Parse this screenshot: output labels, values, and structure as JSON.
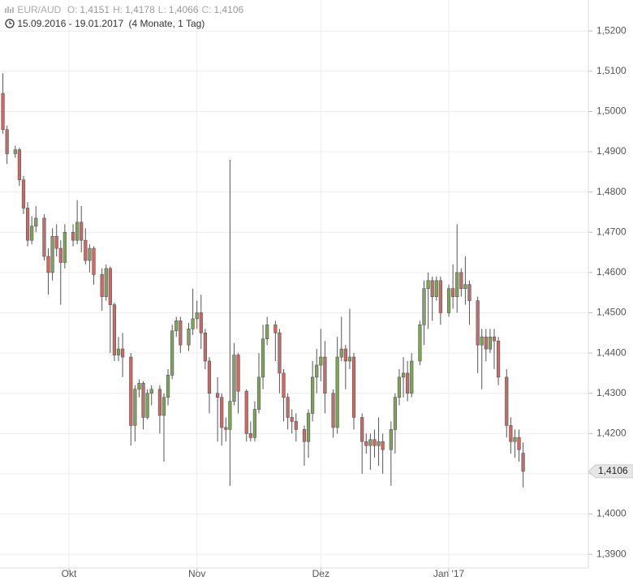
{
  "chart_data": {
    "type": "candlestick",
    "title": "EUR/AUD",
    "summary": [
      {
        "key": "O:",
        "value": 1.4151,
        "value_label": "1,4151"
      },
      {
        "key": "H:",
        "value": 1.4178,
        "value_label": "1,4178"
      },
      {
        "key": "L:",
        "value": 1.4066,
        "value_label": "1,4066"
      },
      {
        "key": "C:",
        "value": 1.4106,
        "value_label": "1,4106"
      }
    ],
    "date_range": "15.09.2016 - 19.01.2017",
    "period": "(4 Monate, 1 Tag)",
    "last_price": {
      "value": 1.4106,
      "label": "1,4106"
    },
    "up_color": "#7ea35a",
    "down_color": "#c96a66",
    "grid": true,
    "ylim": [
      1.3866,
      1.5277
    ],
    "yticks": [
      {
        "value": 1.52,
        "label": "1,5200"
      },
      {
        "value": 1.51,
        "label": "1,5100"
      },
      {
        "value": 1.5,
        "label": "1,5000"
      },
      {
        "value": 1.49,
        "label": "1,4900"
      },
      {
        "value": 1.48,
        "label": "1,4800"
      },
      {
        "value": 1.47,
        "label": "1,4700"
      },
      {
        "value": 1.46,
        "label": "1,4600"
      },
      {
        "value": 1.45,
        "label": "1,4500"
      },
      {
        "value": 1.44,
        "label": "1,4400"
      },
      {
        "value": 1.43,
        "label": "1,4300"
      },
      {
        "value": 1.42,
        "label": "1,4200"
      },
      {
        "value": 1.41,
        "label": "1,4100"
      },
      {
        "value": 1.4,
        "label": "1,4000"
      },
      {
        "value": 1.39,
        "label": "1,3900"
      }
    ],
    "xlim": [
      -0.7,
      141.8
    ],
    "xticks": [
      {
        "value": 16,
        "label": "Okt"
      },
      {
        "value": 47,
        "label": "Nov"
      },
      {
        "value": 77,
        "label": "Dez"
      },
      {
        "value": 108,
        "label": "Jan '17"
      }
    ],
    "x": [
      0,
      1,
      3,
      4,
      5,
      6,
      7,
      8,
      10,
      11,
      12,
      13,
      14,
      15,
      17,
      18,
      19,
      20,
      21,
      22,
      24,
      25,
      26,
      27,
      28,
      29,
      31,
      32,
      33,
      34,
      35,
      36,
      38,
      39,
      40,
      41,
      42,
      43,
      45,
      46,
      47,
      48,
      49,
      50,
      52,
      53,
      54,
      55,
      56,
      57,
      59,
      60,
      61,
      62,
      63,
      64,
      66,
      67,
      68,
      69,
      70,
      71,
      73,
      74,
      75,
      76,
      77,
      78,
      80,
      81,
      82,
      83,
      84,
      85,
      87,
      88,
      89,
      90,
      91,
      92,
      94,
      95,
      96,
      97,
      98,
      99,
      101,
      102,
      103,
      104,
      105,
      106,
      108,
      109,
      110,
      111,
      112,
      113,
      115,
      116,
      117,
      118,
      119,
      120,
      122,
      123,
      124,
      125,
      126
    ],
    "open": [
      1.5045,
      1.4955,
      1.4895,
      1.4905,
      1.483,
      1.476,
      1.468,
      1.4715,
      1.4735,
      1.464,
      1.46,
      1.469,
      1.466,
      1.4625,
      1.47,
      1.468,
      1.4725,
      1.468,
      1.463,
      1.466,
      1.4595,
      1.454,
      1.461,
      1.452,
      1.4395,
      1.441,
      1.439,
      1.422,
      1.431,
      1.4325,
      1.424,
      1.43,
      1.431,
      1.4245,
      1.429,
      1.4345,
      1.4455,
      1.448,
      1.442,
      1.446,
      1.4485,
      1.45,
      1.445,
      1.438,
      1.43,
      1.429,
      1.4215,
      1.421,
      1.428,
      1.4395,
      1.4305,
      1.42,
      1.419,
      1.426,
      1.434,
      1.4435,
      1.447,
      1.445,
      1.435,
      1.429,
      1.424,
      1.423,
      1.421,
      1.418,
      1.425,
      1.434,
      1.437,
      1.439,
      1.43,
      1.4215,
      1.439,
      1.441,
      1.438,
      1.439,
      1.424,
      1.418,
      1.417,
      1.4185,
      1.417,
      1.418,
      1.416,
      1.421,
      1.429,
      1.434,
      1.435,
      1.43,
      1.438,
      1.447,
      1.456,
      1.458,
      1.454,
      1.458,
      1.45,
      1.456,
      1.454,
      1.46,
      1.456,
      1.457,
      1.453,
      1.442,
      1.444,
      1.441,
      1.444,
      1.443,
      1.434,
      1.422,
      1.418,
      1.419,
      1.4151
    ],
    "high": [
      1.5095,
      1.4965,
      1.4915,
      1.491,
      1.484,
      1.4775,
      1.474,
      1.4765,
      1.4745,
      1.466,
      1.471,
      1.472,
      1.468,
      1.472,
      1.472,
      1.478,
      1.4765,
      1.471,
      1.467,
      1.4665,
      1.461,
      1.462,
      1.4615,
      1.4525,
      1.444,
      1.445,
      1.44,
      1.432,
      1.4335,
      1.433,
      1.431,
      1.432,
      1.432,
      1.43,
      1.436,
      1.447,
      1.449,
      1.449,
      1.4475,
      1.456,
      1.453,
      1.4545,
      1.446,
      1.439,
      1.434,
      1.43,
      1.424,
      1.488,
      1.4425,
      1.44,
      1.431,
      1.423,
      1.428,
      1.44,
      1.447,
      1.449,
      1.448,
      1.446,
      1.436,
      1.43,
      1.426,
      1.425,
      1.422,
      1.426,
      1.438,
      1.441,
      1.446,
      1.443,
      1.431,
      1.444,
      1.449,
      1.442,
      1.451,
      1.44,
      1.425,
      1.42,
      1.42,
      1.421,
      1.424,
      1.42,
      1.423,
      1.43,
      1.436,
      1.439,
      1.438,
      1.44,
      1.448,
      1.458,
      1.46,
      1.459,
      1.459,
      1.459,
      1.457,
      1.462,
      1.472,
      1.461,
      1.464,
      1.458,
      1.454,
      1.446,
      1.446,
      1.446,
      1.446,
      1.444,
      1.436,
      1.424,
      1.421,
      1.421,
      1.4178
    ],
    "low": [
      1.4945,
      1.487,
      1.4885,
      1.4815,
      1.4745,
      1.4665,
      1.467,
      1.47,
      1.463,
      1.4545,
      1.458,
      1.464,
      1.452,
      1.461,
      1.4665,
      1.467,
      1.465,
      1.462,
      1.46,
      1.457,
      1.4505,
      1.453,
      1.44,
      1.438,
      1.438,
      1.434,
      1.417,
      1.418,
      1.429,
      1.421,
      1.4235,
      1.427,
      1.42,
      1.413,
      1.427,
      1.4335,
      1.444,
      1.44,
      1.4405,
      1.4445,
      1.446,
      1.441,
      1.436,
      1.425,
      1.418,
      1.417,
      1.418,
      1.407,
      1.427,
      1.425,
      1.418,
      1.418,
      1.418,
      1.425,
      1.431,
      1.442,
      1.438,
      1.43,
      1.423,
      1.421,
      1.42,
      1.418,
      1.412,
      1.414,
      1.423,
      1.43,
      1.433,
      1.425,
      1.419,
      1.42,
      1.438,
      1.431,
      1.436,
      1.421,
      1.41,
      1.415,
      1.411,
      1.414,
      1.412,
      1.41,
      1.407,
      1.415,
      1.427,
      1.429,
      1.428,
      1.429,
      1.437,
      1.442,
      1.446,
      1.448,
      1.453,
      1.447,
      1.449,
      1.451,
      1.45,
      1.454,
      1.452,
      1.447,
      1.435,
      1.431,
      1.438,
      1.44,
      1.436,
      1.432,
      1.419,
      1.415,
      1.414,
      1.413,
      1.4066
    ],
    "close": [
      1.4955,
      1.4895,
      1.4905,
      1.483,
      1.476,
      1.468,
      1.4715,
      1.4735,
      1.464,
      1.46,
      1.469,
      1.466,
      1.4625,
      1.47,
      1.468,
      1.4725,
      1.468,
      1.463,
      1.466,
      1.4595,
      1.454,
      1.461,
      1.452,
      1.4395,
      1.441,
      1.439,
      1.422,
      1.431,
      1.4325,
      1.424,
      1.43,
      1.431,
      1.4245,
      1.429,
      1.4345,
      1.4455,
      1.448,
      1.442,
      1.446,
      1.4485,
      1.45,
      1.445,
      1.438,
      1.43,
      1.429,
      1.4215,
      1.421,
      1.428,
      1.4395,
      1.4305,
      1.42,
      1.419,
      1.426,
      1.434,
      1.4435,
      1.447,
      1.445,
      1.435,
      1.429,
      1.424,
      1.423,
      1.421,
      1.418,
      1.425,
      1.434,
      1.437,
      1.439,
      1.43,
      1.4215,
      1.439,
      1.441,
      1.438,
      1.439,
      1.424,
      1.418,
      1.417,
      1.4185,
      1.417,
      1.418,
      1.416,
      1.421,
      1.429,
      1.434,
      1.435,
      1.43,
      1.438,
      1.447,
      1.456,
      1.458,
      1.454,
      1.458,
      1.45,
      1.456,
      1.454,
      1.46,
      1.456,
      1.457,
      1.453,
      1.442,
      1.444,
      1.441,
      1.444,
      1.443,
      1.434,
      1.422,
      1.418,
      1.419,
      1.416,
      1.4106
    ]
  }
}
